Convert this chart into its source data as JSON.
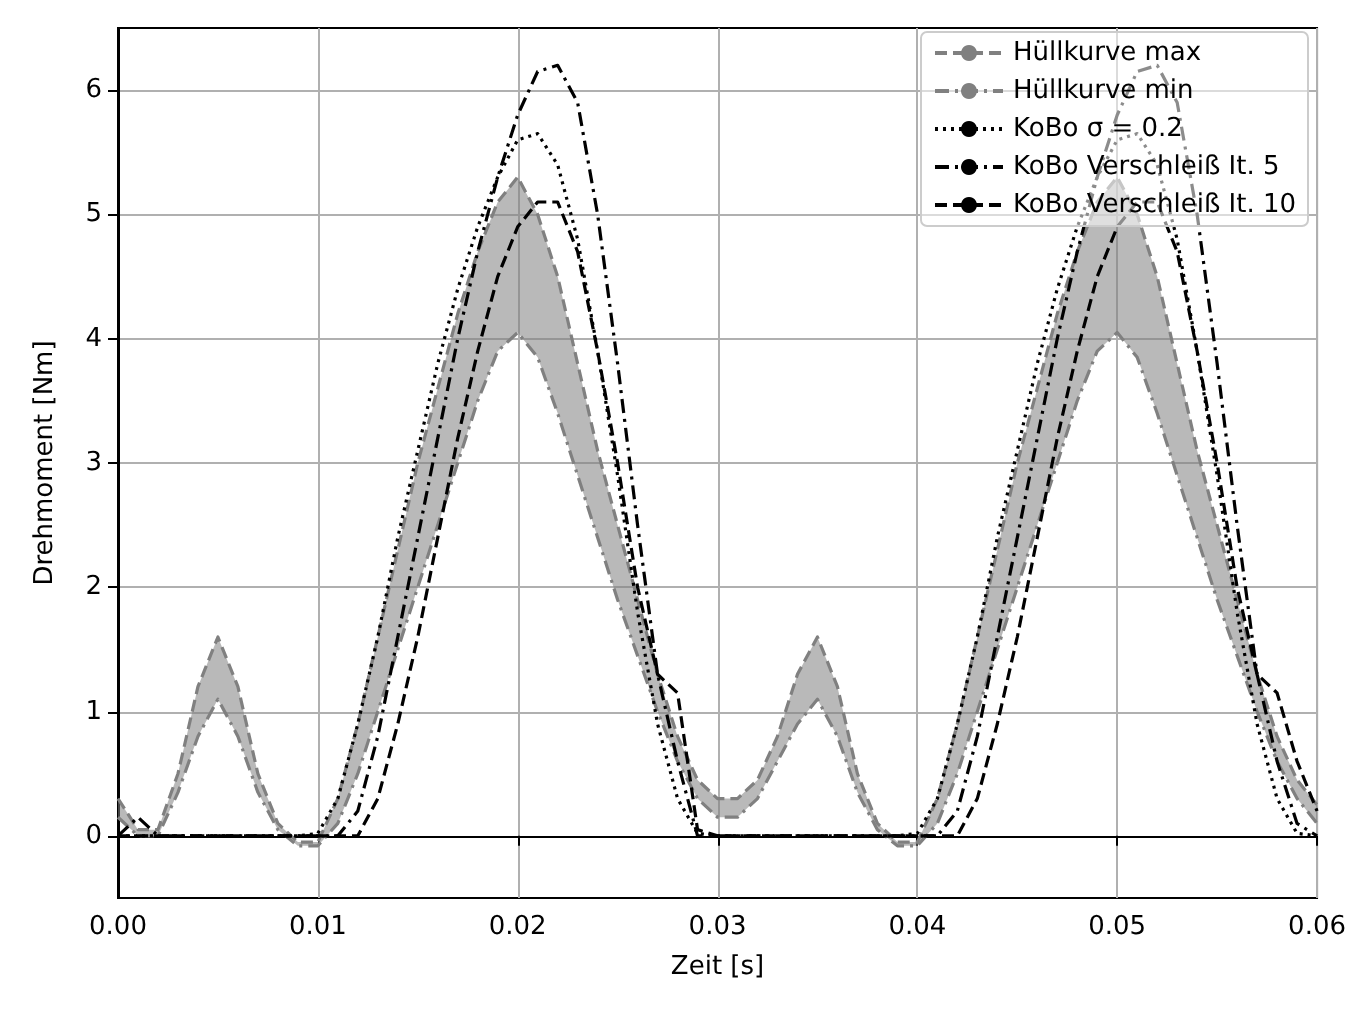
{
  "chart_data": {
    "type": "line",
    "xlabel": "Zeit [s]",
    "ylabel": "Drehmoment [Nm]",
    "x": [
      0,
      0.001,
      0.002,
      0.003,
      0.004,
      0.005,
      0.006,
      0.007,
      0.008,
      0.009,
      0.01,
      0.011,
      0.012,
      0.013,
      0.014,
      0.015,
      0.016,
      0.017,
      0.018,
      0.019,
      0.02,
      0.021,
      0.022,
      0.023,
      0.024,
      0.025,
      0.026,
      0.027,
      0.028,
      0.029,
      0.03,
      0.031,
      0.032,
      0.033,
      0.034,
      0.035,
      0.036,
      0.037,
      0.038,
      0.039,
      0.04,
      0.041,
      0.042,
      0.043,
      0.044,
      0.045,
      0.046,
      0.047,
      0.048,
      0.049,
      0.05,
      0.051,
      0.052,
      0.053,
      0.054,
      0.055,
      0.056,
      0.057,
      0.058,
      0.059,
      0.06
    ],
    "series": [
      {
        "name": "Hüllkurve max",
        "color": "#808080",
        "line_style": "dashed",
        "values": [
          0.3,
          0.05,
          0.05,
          0.5,
          1.2,
          1.6,
          1.2,
          0.5,
          0.1,
          -0.05,
          -0.05,
          0.3,
          0.9,
          1.6,
          2.3,
          3.0,
          3.6,
          4.2,
          4.7,
          5.1,
          5.3,
          5.0,
          4.5,
          3.8,
          3.1,
          2.5,
          1.9,
          1.3,
          0.8,
          0.45,
          0.3,
          0.3,
          0.45,
          0.8,
          1.3,
          1.6,
          1.2,
          0.5,
          0.1,
          -0.05,
          -0.05,
          0.3,
          0.9,
          1.6,
          2.3,
          3.0,
          3.6,
          4.2,
          4.7,
          5.1,
          5.3,
          5.0,
          4.5,
          3.8,
          3.1,
          2.5,
          1.9,
          1.3,
          0.8,
          0.45,
          0.25
        ],
        "upper": [
          0.3,
          0.05,
          0.05,
          0.5,
          1.2,
          1.6,
          1.2,
          0.5,
          0.1,
          -0.05,
          -0.05,
          0.3,
          0.9,
          1.6,
          2.3,
          3.0,
          3.6,
          4.2,
          4.7,
          5.1,
          5.3,
          5.0,
          4.5,
          3.8,
          3.1,
          2.5,
          1.9,
          1.3,
          0.8,
          0.45,
          0.3,
          0.3,
          0.45,
          0.8,
          1.3,
          1.6,
          1.2,
          0.5,
          0.1,
          -0.05,
          -0.05,
          0.3,
          0.9,
          1.6,
          2.3,
          3.0,
          3.6,
          4.2,
          4.7,
          5.1,
          5.3,
          5.0,
          4.5,
          3.8,
          3.1,
          2.5,
          1.9,
          1.3,
          0.8,
          0.45,
          0.25
        ],
        "lower": [
          0.15,
          0,
          0,
          0.35,
          0.8,
          1.1,
          0.8,
          0.35,
          0.05,
          -0.08,
          -0.08,
          0.1,
          0.5,
          1.0,
          1.5,
          2.0,
          2.5,
          3.0,
          3.5,
          3.9,
          4.05,
          3.85,
          3.4,
          2.9,
          2.4,
          1.9,
          1.45,
          1.0,
          0.6,
          0.3,
          0.15,
          0.15,
          0.3,
          0.6,
          0.9,
          1.1,
          0.8,
          0.35,
          0.05,
          -0.08,
          -0.08,
          0.1,
          0.5,
          1.0,
          1.5,
          2.0,
          2.5,
          3.0,
          3.5,
          3.9,
          4.05,
          3.85,
          3.4,
          2.9,
          2.4,
          1.9,
          1.45,
          1.0,
          0.6,
          0.3,
          0.1
        ]
      },
      {
        "name": "Hüllkurve min",
        "color": "#808080",
        "line_style": "dashdot",
        "values": [
          0.15,
          0,
          0,
          0.35,
          0.8,
          1.1,
          0.8,
          0.35,
          0.05,
          -0.08,
          -0.08,
          0.1,
          0.5,
          1.0,
          1.5,
          2.0,
          2.5,
          3.0,
          3.5,
          3.9,
          4.05,
          3.85,
          3.4,
          2.9,
          2.4,
          1.9,
          1.45,
          1.0,
          0.6,
          0.3,
          0.15,
          0.15,
          0.3,
          0.6,
          0.9,
          1.1,
          0.8,
          0.35,
          0.05,
          -0.08,
          -0.08,
          0.1,
          0.5,
          1.0,
          1.5,
          2.0,
          2.5,
          3.0,
          3.5,
          3.9,
          4.05,
          3.85,
          3.4,
          2.9,
          2.4,
          1.9,
          1.45,
          1.0,
          0.6,
          0.3,
          0.1
        ]
      },
      {
        "name": "KoBo σ = 0.2",
        "color": "#000000",
        "line_style": "dotted",
        "values": [
          0,
          0,
          0,
          0,
          0,
          0,
          0,
          0,
          0,
          0,
          0.02,
          0.3,
          0.9,
          1.6,
          2.4,
          3.1,
          3.8,
          4.4,
          4.9,
          5.3,
          5.6,
          5.65,
          5.4,
          4.8,
          3.9,
          2.9,
          1.8,
          0.9,
          0.3,
          0.02,
          0,
          0,
          0,
          0,
          0,
          0,
          0,
          0,
          0,
          0,
          0.02,
          0.3,
          0.9,
          1.6,
          2.4,
          3.1,
          3.8,
          4.4,
          4.9,
          5.3,
          5.6,
          5.65,
          5.4,
          4.8,
          3.9,
          2.9,
          1.8,
          0.9,
          0.3,
          0.02,
          0
        ]
      },
      {
        "name": "KoBo Verschleiß It. 5",
        "color": "#000000",
        "line_style": "dashdot",
        "values": [
          0,
          0.15,
          0,
          0,
          0,
          0,
          0,
          0,
          0,
          0,
          0,
          0,
          0.2,
          0.8,
          1.6,
          2.4,
          3.2,
          4.0,
          4.7,
          5.3,
          5.8,
          6.15,
          6.2,
          5.9,
          5.0,
          3.8,
          2.5,
          1.3,
          0.6,
          0,
          0,
          0,
          0,
          0,
          0,
          0,
          0,
          0,
          0,
          0,
          0,
          0,
          0.2,
          0.8,
          1.6,
          2.4,
          3.2,
          4.0,
          4.7,
          5.3,
          5.8,
          6.15,
          6.2,
          5.9,
          5.0,
          3.8,
          2.5,
          1.3,
          0.6,
          0.1,
          0
        ]
      },
      {
        "name": "KoBo Verschleiß It. 10",
        "color": "#000000",
        "line_style": "dashed",
        "values": [
          0,
          0,
          0,
          0,
          0,
          0,
          0,
          0,
          0,
          0,
          0,
          0,
          0,
          0.3,
          0.9,
          1.6,
          2.4,
          3.2,
          3.9,
          4.5,
          4.9,
          5.1,
          5.1,
          4.7,
          3.9,
          3.0,
          2.0,
          1.3,
          1.15,
          0.05,
          0,
          0,
          0,
          0,
          0,
          0,
          0,
          0,
          0,
          0,
          0,
          0,
          0,
          0.3,
          0.9,
          1.6,
          2.4,
          3.2,
          3.9,
          4.5,
          4.9,
          5.1,
          5.1,
          4.7,
          3.9,
          3.0,
          2.0,
          1.3,
          1.15,
          0.6,
          0.2
        ]
      }
    ],
    "xlim": [
      0,
      0.06
    ],
    "xticks": [
      {
        "value": 0,
        "label": "0.00"
      },
      {
        "value": 0.01,
        "label": "0.01"
      },
      {
        "value": 0.02,
        "label": "0.02"
      },
      {
        "value": 0.03,
        "label": "0.03"
      },
      {
        "value": 0.04,
        "label": "0.04"
      },
      {
        "value": 0.05,
        "label": "0.05"
      },
      {
        "value": 0.06,
        "label": "0.06"
      }
    ],
    "ylim": [
      -0.5,
      6.5
    ],
    "yticks": [
      0,
      1,
      2,
      3,
      4,
      5,
      6
    ],
    "grid": true,
    "legend": "top right"
  }
}
